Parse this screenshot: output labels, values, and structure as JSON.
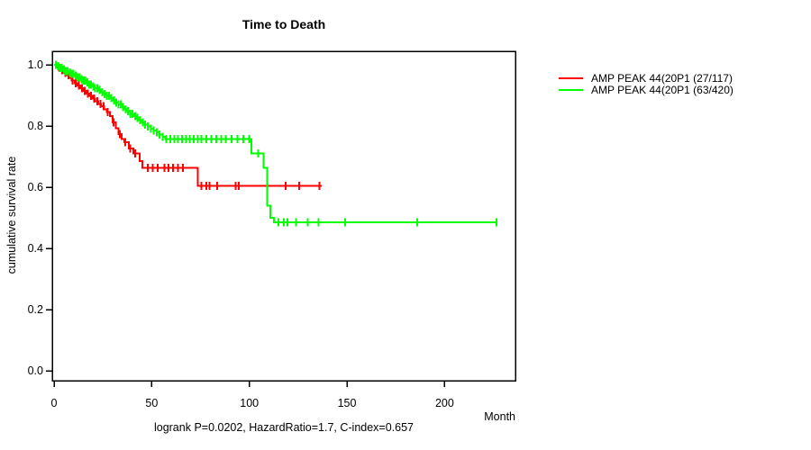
{
  "title": "Time to Death",
  "footer_stats": "logrank P=0.0202, HazardRatio=1.7, C-index=0.657",
  "x_axis_title": "Month",
  "y_axis_title": "cumulative survival rate",
  "colors": {
    "series_red": "#ff0000",
    "series_green": "#00ff00",
    "axis": "#000000",
    "text": "#000000"
  },
  "chart_data": {
    "type": "line",
    "variant": "kaplan_meier_step",
    "title": "Time to Death",
    "xlabel": "Month",
    "ylabel": "cumulative survival rate",
    "annotation": "logrank P=0.0202, HazardRatio=1.7, C-index=0.657",
    "xlim": [
      0,
      236
    ],
    "ylim": [
      0.0,
      1.0
    ],
    "xticks": [
      0,
      50,
      100,
      150,
      200
    ],
    "yticks": [
      0.0,
      0.2,
      0.4,
      0.6,
      0.8,
      1.0
    ],
    "grid": false,
    "legend_position": "right-outside",
    "series": [
      {
        "name": "AMP PEAK 44(20P1 (27/117)",
        "color": "#ff0000",
        "events_over_total": "27/117",
        "end_time": 137,
        "steps": [
          [
            0,
            1.0
          ],
          [
            1.5,
            0.991
          ],
          [
            3,
            0.983
          ],
          [
            4.5,
            0.974
          ],
          [
            6,
            0.966
          ],
          [
            7.5,
            0.957
          ],
          [
            9,
            0.949
          ],
          [
            10.5,
            0.94
          ],
          [
            12,
            0.932
          ],
          [
            13.5,
            0.923
          ],
          [
            15,
            0.915
          ],
          [
            16.5,
            0.906
          ],
          [
            18,
            0.898
          ],
          [
            19.5,
            0.889
          ],
          [
            21,
            0.881
          ],
          [
            22.5,
            0.872
          ],
          [
            24,
            0.864
          ],
          [
            25.5,
            0.855
          ],
          [
            27,
            0.845
          ],
          [
            28.5,
            0.832
          ],
          [
            30,
            0.812
          ],
          [
            31.5,
            0.792
          ],
          [
            33,
            0.773
          ],
          [
            34.5,
            0.758
          ],
          [
            36,
            0.747
          ],
          [
            38.3,
            0.727
          ],
          [
            40.5,
            0.71
          ],
          [
            43.8,
            0.685
          ],
          [
            45.2,
            0.663
          ],
          [
            73.5,
            0.604
          ]
        ],
        "censor_times": [
          2.5,
          4.2,
          5.8,
          7.4,
          9.5,
          11,
          12.6,
          14.2,
          15.8,
          17.4,
          19,
          20.6,
          22.2,
          23.8,
          25.4,
          27.5,
          30.5,
          33.8,
          36.5,
          39,
          41.5,
          48,
          50.5,
          53,
          56.5,
          58.5,
          61,
          63.5,
          66,
          75.5,
          78,
          79.5,
          83.5,
          93,
          94.5,
          118.5,
          125.5,
          136
        ]
      },
      {
        "name": "AMP PEAK 44(20P1 (63/420)",
        "color": "#00ff00",
        "events_over_total": "63/420",
        "end_time": 227,
        "steps": [
          [
            0,
            1.0
          ],
          [
            1.5,
            0.995
          ],
          [
            3,
            0.99
          ],
          [
            4.5,
            0.985
          ],
          [
            6,
            0.98
          ],
          [
            7.5,
            0.975
          ],
          [
            9,
            0.97
          ],
          [
            10.5,
            0.964
          ],
          [
            12,
            0.959
          ],
          [
            13.5,
            0.953
          ],
          [
            15,
            0.948
          ],
          [
            16.5,
            0.942
          ],
          [
            18,
            0.936
          ],
          [
            19.5,
            0.93
          ],
          [
            21,
            0.924
          ],
          [
            22.5,
            0.918
          ],
          [
            24,
            0.911
          ],
          [
            25.5,
            0.905
          ],
          [
            27,
            0.898
          ],
          [
            28.5,
            0.891
          ],
          [
            30,
            0.884
          ],
          [
            31.5,
            0.877
          ],
          [
            33,
            0.87
          ],
          [
            34.5,
            0.862
          ],
          [
            36,
            0.855
          ],
          [
            37.5,
            0.848
          ],
          [
            39,
            0.84
          ],
          [
            40.5,
            0.833
          ],
          [
            42,
            0.826
          ],
          [
            43.5,
            0.819
          ],
          [
            45,
            0.812
          ],
          [
            46.5,
            0.805
          ],
          [
            48,
            0.798
          ],
          [
            49.5,
            0.791
          ],
          [
            51,
            0.785
          ],
          [
            52.5,
            0.779
          ],
          [
            54,
            0.772
          ],
          [
            55.5,
            0.765
          ],
          [
            57,
            0.758
          ],
          [
            101,
            0.71
          ],
          [
            107.2,
            0.663
          ],
          [
            109.2,
            0.54
          ],
          [
            110.8,
            0.5
          ],
          [
            112.5,
            0.485
          ]
        ],
        "censor_times": [
          1,
          2,
          3,
          4,
          5,
          6,
          7,
          8,
          9,
          10,
          11,
          12,
          13,
          14,
          15,
          16,
          17,
          18,
          19,
          20,
          21,
          22.2,
          23.4,
          24.6,
          25.8,
          27,
          28.2,
          29.4,
          30.6,
          31.8,
          33,
          34.2,
          35.4,
          36.6,
          37.8,
          39,
          40.2,
          41.5,
          42.8,
          44.1,
          45.4,
          46.7,
          48,
          49.5,
          51,
          52.5,
          54,
          55.5,
          57.5,
          59.5,
          61.5,
          63.5,
          65.5,
          67.5,
          69.5,
          71.5,
          73.5,
          75.5,
          78,
          80.5,
          83,
          85.5,
          88,
          91,
          94,
          97,
          100,
          104.5,
          114.9,
          117.7,
          119.5,
          124,
          130,
          135.5,
          149,
          186,
          226.5
        ]
      }
    ]
  }
}
